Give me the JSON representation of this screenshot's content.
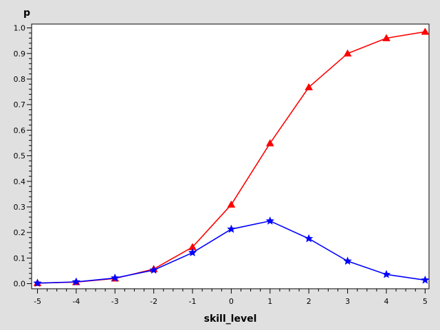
{
  "chart_data": {
    "type": "line",
    "xlabel": "skill_level",
    "ylabel": "p",
    "xlim": [
      -5,
      5
    ],
    "ylim": [
      0,
      1
    ],
    "x_ticks": [
      -5,
      -4,
      -3,
      -2,
      -1,
      0,
      1,
      2,
      3,
      4,
      5
    ],
    "y_ticks": [
      "0.0",
      "0.1",
      "0.2",
      "0.3",
      "0.4",
      "0.5",
      "0.6",
      "0.7",
      "0.8",
      "0.9",
      "1.0"
    ],
    "grid": false,
    "colors": {
      "background": "#e0e0e0",
      "plot_area": "#ffffff"
    },
    "series": [
      {
        "color": "#ff0000",
        "marker": "triangle",
        "x": [
          -5,
          -4,
          -3,
          -2,
          -1,
          0,
          1,
          2,
          3,
          4,
          5
        ],
        "y": [
          0.002,
          0.006,
          0.02,
          0.057,
          0.143,
          0.309,
          0.549,
          0.768,
          0.9,
          0.96,
          0.985
        ]
      },
      {
        "color": "#0000ff",
        "marker": "star",
        "x": [
          -5,
          -4,
          -3,
          -2,
          -1,
          0,
          1,
          2,
          3,
          4,
          5
        ],
        "y": [
          0.002,
          0.007,
          0.022,
          0.053,
          0.121,
          0.213,
          0.245,
          0.176,
          0.088,
          0.036,
          0.014
        ]
      }
    ]
  }
}
